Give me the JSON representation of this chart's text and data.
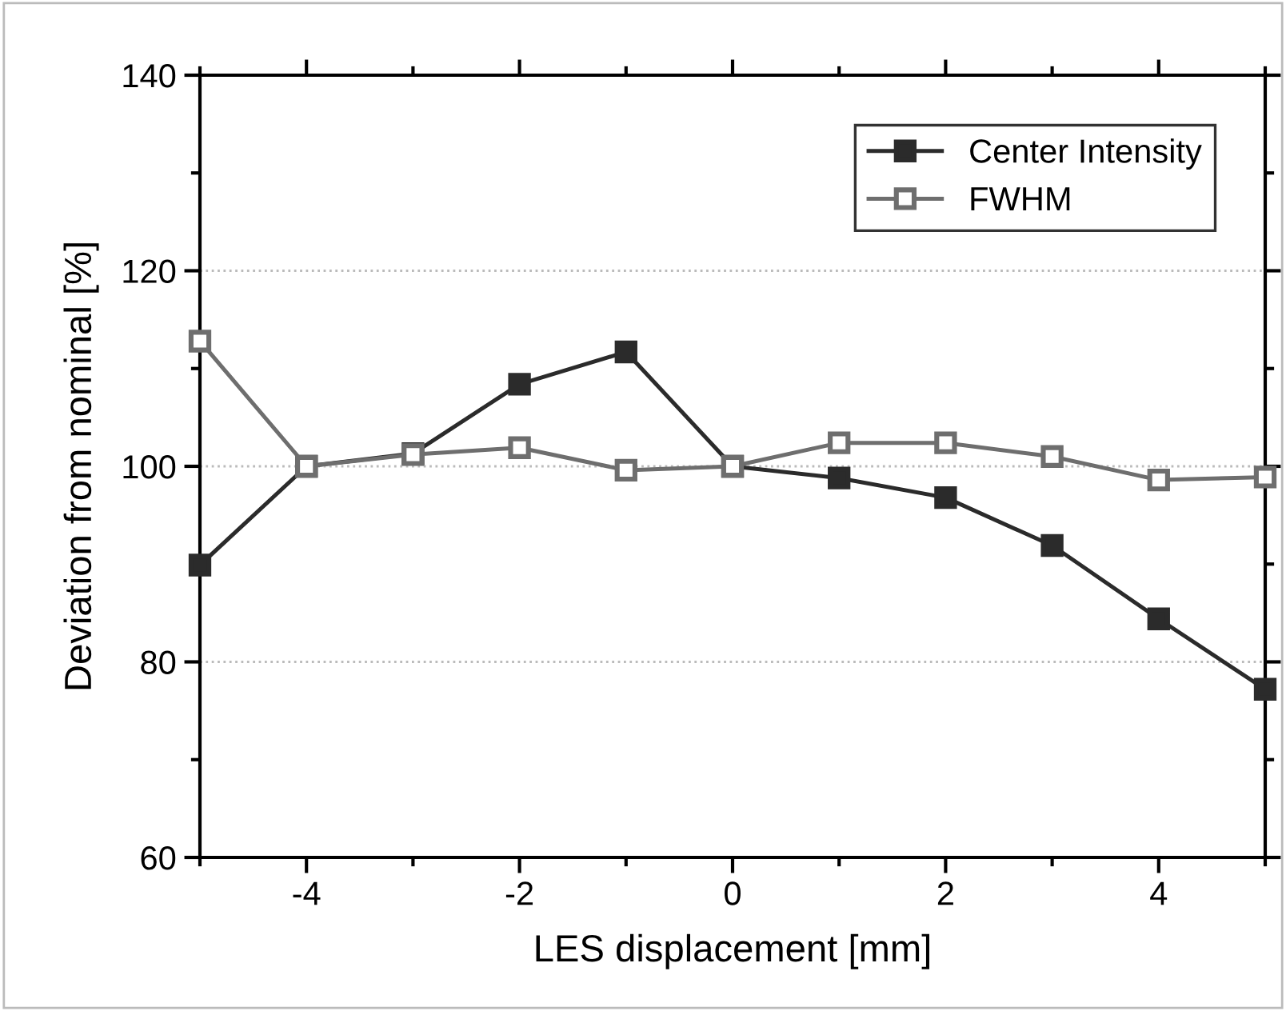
{
  "chart_data": {
    "type": "line",
    "xlabel": "LES displacement [mm]",
    "ylabel": "Deviation from nominal [%]",
    "x": [
      -5,
      -4,
      -3,
      -2,
      -1,
      0,
      1,
      2,
      3,
      4,
      5
    ],
    "series": [
      {
        "name": "Center Intensity",
        "color": "#2b2b2b",
        "marker": "square",
        "values": [
          89.9,
          100,
          101.3,
          108.4,
          111.7,
          100,
          98.8,
          96.8,
          91.9,
          84.4,
          77.2
        ]
      },
      {
        "name": "FWHM",
        "color": "#6e6e6e",
        "marker": "square",
        "values": [
          112.8,
          100,
          101.2,
          101.9,
          99.6,
          100,
          102.4,
          102.4,
          101.0,
          98.6,
          98.9
        ]
      }
    ],
    "xlim": [
      -5,
      5
    ],
    "xticks": [
      -4,
      -2,
      0,
      2,
      4
    ],
    "ylim": [
      60,
      140
    ],
    "yticks": [
      60,
      80,
      100,
      120,
      140
    ],
    "grid": "y",
    "legend": "top right",
    "line_style": "solid"
  }
}
